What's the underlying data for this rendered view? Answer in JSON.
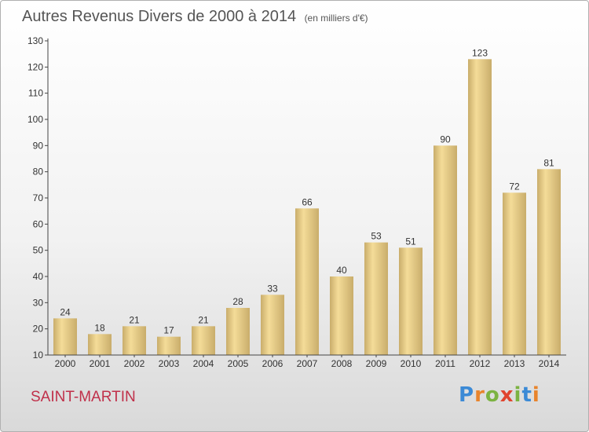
{
  "title": "Autres Revenus Divers de 2000 à 2014",
  "unit_label": "(en milliers d'€)",
  "place_name": "SAINT-MARTIN",
  "logo": {
    "text": "Proxiti",
    "letters": [
      "P",
      "r",
      "o",
      "x",
      "i",
      "t",
      "i"
    ]
  },
  "colors": {
    "bar_light": "#f4dc98",
    "bar_dark": "#c9ad6b",
    "place": "#c0304a",
    "axis": "#444444"
  },
  "chart_data": {
    "type": "bar",
    "title": "Autres Revenus Divers de 2000 à 2014",
    "xlabel": "",
    "ylabel": "",
    "categories": [
      "2000",
      "2001",
      "2002",
      "2003",
      "2004",
      "2005",
      "2006",
      "2007",
      "2008",
      "2009",
      "2010",
      "2011",
      "2012",
      "2013",
      "2014"
    ],
    "values": [
      24,
      18,
      21,
      17,
      21,
      28,
      33,
      66,
      40,
      53,
      51,
      90,
      123,
      72,
      81
    ],
    "ylim": [
      10,
      130
    ],
    "yticks": [
      10,
      20,
      30,
      40,
      50,
      60,
      70,
      80,
      90,
      100,
      110,
      120,
      130
    ],
    "grid": false,
    "legend": "none"
  }
}
